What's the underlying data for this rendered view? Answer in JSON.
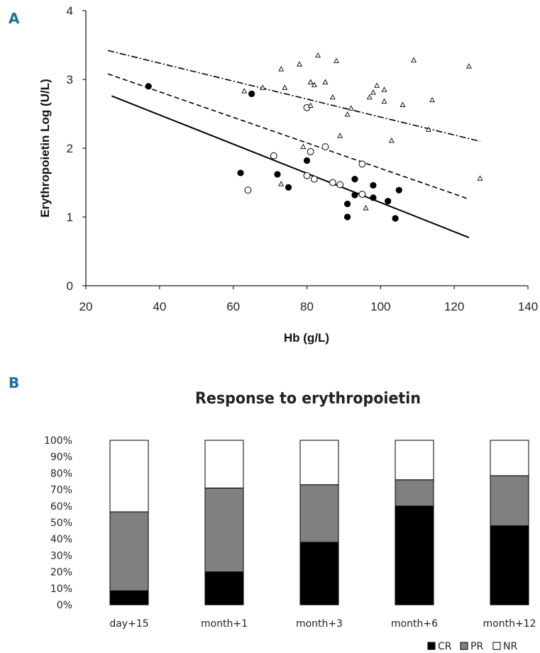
{
  "panel_labels": {
    "a": "A",
    "b": "B"
  },
  "chart_data": [
    {
      "type": "scatter",
      "title": "",
      "xlabel": "Hb (g/L)",
      "ylabel": "Erythropoietin Log (U/L)",
      "xlim": [
        20,
        140
      ],
      "ylim": [
        0,
        4
      ],
      "xticks": [
        "20",
        "40",
        "60",
        "80",
        "100",
        "120",
        "140"
      ],
      "yticks": [
        "0",
        "1",
        "2",
        "3",
        "4"
      ],
      "series": [
        {
          "marker": "filled-circle",
          "points": [
            [
              37,
              2.9
            ],
            [
              65,
              2.79
            ],
            [
              62,
              1.64
            ],
            [
              72,
              1.62
            ],
            [
              75,
              1.43
            ],
            [
              80,
              1.82
            ],
            [
              91,
              1.19
            ],
            [
              91,
              1.0
            ],
            [
              93,
              1.55
            ],
            [
              93,
              1.32
            ],
            [
              98,
              1.46
            ],
            [
              98,
              1.28
            ],
            [
              102,
              1.23
            ],
            [
              104,
              0.98
            ],
            [
              105,
              1.39
            ]
          ]
        },
        {
          "marker": "open-circle",
          "points": [
            [
              64,
              1.39
            ],
            [
              71,
              1.89
            ],
            [
              80,
              2.59
            ],
            [
              80,
              1.6
            ],
            [
              81,
              1.95
            ],
            [
              82,
              1.55
            ],
            [
              85,
              2.02
            ],
            [
              87,
              1.5
            ],
            [
              89,
              1.47
            ],
            [
              95,
              1.33
            ],
            [
              95,
              1.77
            ]
          ]
        },
        {
          "marker": "open-triangle",
          "points": [
            [
              63,
              2.83
            ],
            [
              68,
              2.88
            ],
            [
              73,
              3.15
            ],
            [
              74,
              2.88
            ],
            [
              73,
              1.48
            ],
            [
              78,
              3.22
            ],
            [
              79,
              2.02
            ],
            [
              81,
              2.96
            ],
            [
              82,
              2.92
            ],
            [
              83,
              3.35
            ],
            [
              85,
              2.96
            ],
            [
              87,
              2.74
            ],
            [
              88,
              3.27
            ],
            [
              89,
              2.18
            ],
            [
              91,
              2.49
            ],
            [
              92,
              2.58
            ],
            [
              97,
              2.74
            ],
            [
              98,
              2.81
            ],
            [
              99,
              2.91
            ],
            [
              101,
              2.85
            ],
            [
              101,
              2.68
            ],
            [
              103,
              2.11
            ],
            [
              106,
              2.63
            ],
            [
              96,
              1.13
            ],
            [
              109,
              3.28
            ],
            [
              113,
              2.27
            ],
            [
              114,
              2.7
            ],
            [
              124,
              3.19
            ],
            [
              127,
              1.56
            ],
            [
              81,
              2.62
            ]
          ]
        }
      ],
      "fit_lines": [
        {
          "style": "solid",
          "x": [
            27,
            124
          ],
          "y": [
            2.76,
            0.7
          ]
        },
        {
          "style": "dashed",
          "x": [
            26,
            124
          ],
          "y": [
            3.08,
            1.26
          ]
        },
        {
          "style": "dash-dot",
          "x": [
            26,
            127
          ],
          "y": [
            3.42,
            2.1
          ]
        }
      ]
    },
    {
      "type": "bar",
      "stacked": true,
      "title": "Response to erythropoietin",
      "categories": [
        "day+15",
        "month+1",
        "month+3",
        "month+6",
        "month+12"
      ],
      "ylim": [
        0,
        100
      ],
      "yticks": [
        "0%",
        "10%",
        "20%",
        "30%",
        "40%",
        "50%",
        "60%",
        "70%",
        "80%",
        "90%",
        "100%"
      ],
      "legend_position": "bottom-right",
      "series": [
        {
          "name": "CR",
          "color": "#000000",
          "values": [
            8.5,
            20,
            38,
            60,
            48
          ]
        },
        {
          "name": "PR",
          "color": "#808080",
          "values": [
            48,
            51,
            35,
            16,
            30.5
          ]
        },
        {
          "name": "NR",
          "color": "#ffffff",
          "values": [
            43.5,
            29,
            27,
            24,
            21.5
          ]
        }
      ]
    }
  ]
}
